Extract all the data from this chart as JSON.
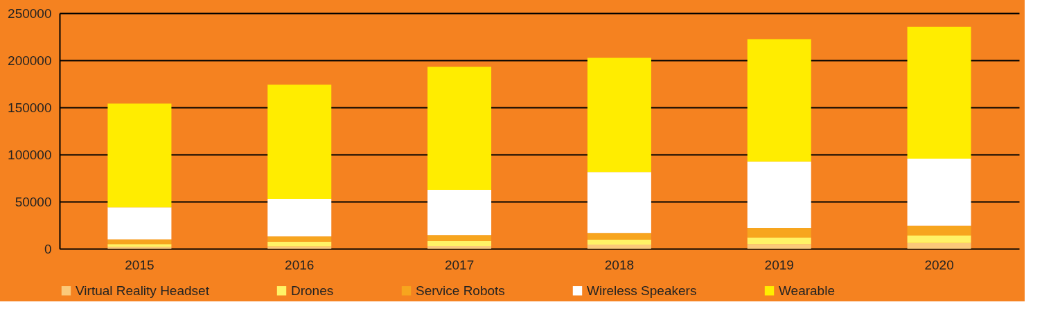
{
  "chart_data": {
    "type": "bar",
    "stacked": true,
    "categories": [
      "2015",
      "2016",
      "2017",
      "2018",
      "2019",
      "2020"
    ],
    "series": [
      {
        "name": "Virtual Reality Headset",
        "color": "#fbc97a",
        "values": [
          2000,
          2500,
          3000,
          4500,
          5000,
          6000
        ]
      },
      {
        "name": "Drones",
        "color": "#fff366",
        "values": [
          3000,
          5000,
          5000,
          5000,
          7000,
          8000
        ]
      },
      {
        "name": "Service Robots",
        "color": "#f7a51e",
        "values": [
          5000,
          5500,
          6500,
          7300,
          10000,
          10500
        ]
      },
      {
        "name": "Wireless Speakers",
        "color": "#ffffff",
        "values": [
          34000,
          40000,
          48000,
          64600,
          70500,
          71000
        ]
      },
      {
        "name": "Wearable",
        "color": "#ffed00",
        "values": [
          110000,
          121000,
          130500,
          121100,
          130000,
          140000
        ]
      }
    ],
    "ylim": [
      0,
      250000
    ],
    "yticks": [
      0,
      50000,
      100000,
      150000,
      200000,
      250000
    ],
    "grid": "y",
    "legend": "bottom"
  }
}
